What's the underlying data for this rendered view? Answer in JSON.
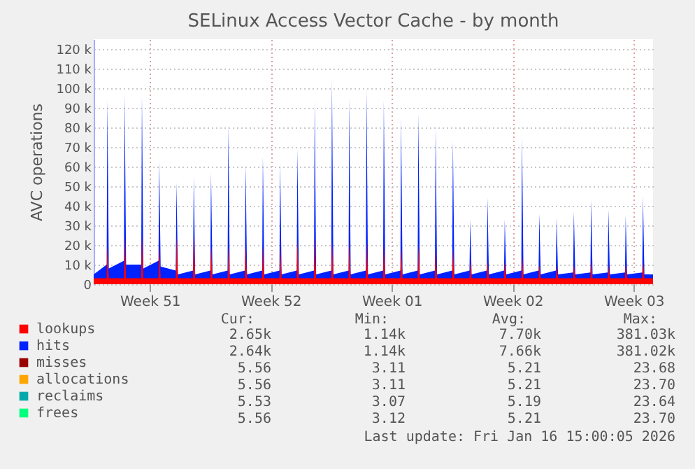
{
  "chart_data": {
    "type": "area",
    "title": "SELinux Access Vector Cache - by month",
    "ylabel": "AVC operations",
    "x": [
      "2025-12-15T06:00",
      "2025-12-16T00:00",
      "2025-12-16T01:00",
      "2025-12-16T03:00",
      "2025-12-17T00:00",
      "2025-12-17T01:00",
      "2025-12-17T03:00",
      "2025-12-18T00:00",
      "2025-12-18T01:00",
      "2025-12-18T03:00",
      "2025-12-19T00:00",
      "2025-12-19T01:00",
      "2025-12-19T03:00",
      "2025-12-20T00:00",
      "2025-12-20T01:00",
      "2025-12-20T03:00",
      "2025-12-21T00:00",
      "2025-12-21T01:00",
      "2025-12-21T03:00",
      "2025-12-22T00:00",
      "2025-12-22T01:00",
      "2025-12-22T03:00",
      "2025-12-23T00:00",
      "2025-12-23T01:00",
      "2025-12-23T03:00",
      "2025-12-24T00:00",
      "2025-12-24T01:00",
      "2025-12-24T03:00",
      "2025-12-25T00:00",
      "2025-12-25T01:00",
      "2025-12-25T03:00",
      "2025-12-26T00:00",
      "2025-12-26T01:00",
      "2025-12-26T03:00",
      "2025-12-27T00:00",
      "2025-12-27T01:00",
      "2025-12-27T03:00",
      "2025-12-28T00:00",
      "2025-12-28T01:00",
      "2025-12-28T03:00",
      "2025-12-29T00:00",
      "2025-12-29T01:00",
      "2025-12-29T03:00",
      "2025-12-30T00:00",
      "2025-12-30T01:00",
      "2025-12-30T03:00",
      "2025-12-31T00:00",
      "2025-12-31T01:00",
      "2025-12-31T03:00",
      "2026-01-01T00:00",
      "2026-01-01T01:00",
      "2026-01-01T03:00",
      "2026-01-02T00:00",
      "2026-01-02T01:00",
      "2026-01-02T03:00",
      "2026-01-03T00:00",
      "2026-01-03T01:00",
      "2026-01-03T03:00",
      "2026-01-04T00:00",
      "2026-01-04T01:00",
      "2026-01-04T03:00",
      "2026-01-05T00:00",
      "2026-01-05T01:00",
      "2026-01-05T03:00",
      "2026-01-06T00:00",
      "2026-01-06T01:00",
      "2026-01-06T03:00",
      "2026-01-07T00:00",
      "2026-01-07T01:00",
      "2026-01-07T03:00",
      "2026-01-08T00:00",
      "2026-01-08T01:00",
      "2026-01-08T03:00",
      "2026-01-09T00:00",
      "2026-01-09T01:00",
      "2026-01-09T03:00",
      "2026-01-10T00:00",
      "2026-01-10T01:00",
      "2026-01-10T03:00",
      "2026-01-11T00:00",
      "2026-01-11T01:00",
      "2026-01-11T03:00",
      "2026-01-12T00:00",
      "2026-01-12T01:00",
      "2026-01-12T03:00",
      "2026-01-13T00:00",
      "2026-01-13T01:00",
      "2026-01-13T03:00",
      "2026-01-14T00:00",
      "2026-01-14T01:00",
      "2026-01-14T03:00",
      "2026-01-15T00:00",
      "2026-01-15T01:00",
      "2026-01-15T03:00",
      "2026-01-16T00:00",
      "2026-01-16T01:00",
      "2026-01-16T03:00",
      "2026-01-16T15:00"
    ],
    "series": [
      {
        "name": "lookups",
        "color": "#ff0000",
        "values": [
          3000,
          3000,
          20000,
          3000,
          3000,
          25000,
          3000,
          3000,
          25000,
          3000,
          3000,
          20000,
          3000,
          3000,
          25000,
          3000,
          3000,
          25000,
          3000,
          3000,
          20000,
          3000,
          3000,
          20000,
          3000,
          3000,
          20000,
          3000,
          3000,
          20000,
          3000,
          3000,
          20000,
          3000,
          3000,
          22000,
          3000,
          3000,
          25000,
          3000,
          3000,
          22000,
          3000,
          3000,
          22000,
          3000,
          3000,
          22000,
          3000,
          3000,
          20000,
          3000,
          3000,
          20000,
          3000,
          3000,
          20000,
          3000,
          3000,
          18000,
          3000,
          3000,
          18000,
          3000,
          3000,
          12000,
          3000,
          3000,
          12000,
          3000,
          3000,
          12000,
          3000,
          3000,
          15000,
          3000,
          3000,
          10000,
          3000,
          3000,
          10000,
          3000,
          3000,
          10000,
          3000,
          3000,
          12000,
          3000,
          3000,
          10000,
          3000,
          3000,
          10000,
          3000,
          3000,
          12000,
          3000,
          3000
        ]
      },
      {
        "name": "hits",
        "color": "#0022ff",
        "values": [
          5000,
          10000,
          94000,
          8000,
          12000,
          97000,
          10000,
          10000,
          96000,
          8000,
          12000,
          63000,
          9000,
          7000,
          52000,
          5000,
          7000,
          55000,
          5000,
          7000,
          57000,
          5000,
          7000,
          81000,
          5000,
          7000,
          61000,
          5000,
          7000,
          65000,
          5000,
          7000,
          62000,
          5000,
          7000,
          69000,
          5000,
          7000,
          94000,
          5000,
          7000,
          104000,
          5000,
          7000,
          95000,
          5000,
          7000,
          99000,
          5000,
          7000,
          94000,
          5000,
          7000,
          85000,
          5000,
          7000,
          87000,
          5000,
          7000,
          80000,
          5000,
          7000,
          73000,
          5000,
          7000,
          33000,
          5000,
          7000,
          44000,
          5000,
          7000,
          33000,
          5000,
          7000,
          75000,
          5000,
          7000,
          36000,
          5000,
          7000,
          34000,
          5000,
          6000,
          37000,
          5000,
          6000,
          43000,
          5000,
          6000,
          38000,
          5000,
          6000,
          35000,
          5000,
          6000,
          45000,
          5000,
          5000
        ]
      },
      {
        "name": "misses",
        "color": "#990000",
        "values": [
          null,
          null,
          null,
          null,
          null,
          null,
          null,
          null,
          null,
          null,
          null,
          null,
          null,
          null,
          null,
          null,
          null,
          null,
          null,
          null,
          null,
          null,
          null,
          null,
          null,
          null,
          null,
          null,
          null,
          null,
          null,
          null,
          null,
          null,
          null,
          null,
          null,
          null,
          null,
          null,
          null,
          null,
          null,
          null,
          null,
          null,
          null,
          null,
          null,
          null,
          null,
          null,
          null,
          null,
          null,
          null,
          null,
          null,
          null,
          null,
          null,
          null,
          null,
          null,
          null,
          null,
          null,
          null,
          null,
          null,
          null,
          null,
          null,
          null,
          null,
          null,
          null,
          null,
          null,
          null,
          null,
          null,
          null,
          null,
          null,
          null,
          null,
          null,
          null,
          null,
          null,
          null,
          null,
          null,
          null,
          null,
          null,
          null
        ]
      },
      {
        "name": "allocations",
        "color": "#ffa500",
        "values": [
          null,
          null,
          null,
          null,
          null,
          null,
          null,
          null,
          null,
          null,
          null,
          null,
          null,
          null,
          null,
          null,
          null,
          null,
          null,
          null,
          null,
          null,
          null,
          null,
          null,
          null,
          null,
          null,
          null,
          null,
          null,
          null,
          null,
          null,
          null,
          null,
          null,
          null,
          null,
          null,
          null,
          null,
          null,
          null,
          null,
          null,
          null,
          null,
          null,
          null,
          null,
          null,
          null,
          null,
          null,
          null,
          null,
          null,
          null,
          null,
          null,
          null,
          null,
          null,
          null,
          null,
          null,
          null,
          null,
          null,
          null,
          null,
          null,
          null,
          null,
          null,
          null,
          null,
          null,
          null,
          null,
          null,
          null,
          null,
          null,
          null,
          null,
          null,
          null,
          null,
          null,
          null,
          null,
          null,
          null,
          null,
          null,
          null
        ]
      },
      {
        "name": "reclaims",
        "color": "#00aaaa",
        "values": [
          null,
          null,
          null,
          null,
          null,
          null,
          null,
          null,
          null,
          null,
          null,
          null,
          null,
          null,
          null,
          null,
          null,
          null,
          null,
          null,
          null,
          null,
          null,
          null,
          null,
          null,
          null,
          null,
          null,
          null,
          null,
          null,
          null,
          null,
          null,
          null,
          null,
          null,
          null,
          null,
          null,
          null,
          null,
          null,
          null,
          null,
          null,
          null,
          null,
          null,
          null,
          null,
          null,
          null,
          null,
          null,
          null,
          null,
          null,
          null,
          null,
          null,
          null,
          null,
          null,
          null,
          null,
          null,
          null,
          null,
          null,
          null,
          null,
          null,
          null,
          null,
          null,
          null,
          null,
          null,
          null,
          null,
          null,
          null,
          null,
          null,
          null,
          null,
          null,
          null,
          null,
          null,
          null,
          null,
          null,
          null,
          null,
          null
        ]
      },
      {
        "name": "frees",
        "color": "#00ff7f",
        "values": [
          null,
          null,
          null,
          null,
          null,
          null,
          null,
          null,
          null,
          null,
          null,
          null,
          null,
          null,
          null,
          null,
          null,
          null,
          null,
          null,
          null,
          null,
          null,
          null,
          null,
          null,
          null,
          null,
          null,
          null,
          null,
          null,
          null,
          null,
          null,
          null,
          null,
          null,
          null,
          null,
          null,
          null,
          null,
          null,
          null,
          null,
          null,
          null,
          null,
          null,
          null,
          null,
          null,
          null,
          null,
          null,
          null,
          null,
          null,
          null,
          null,
          null,
          null,
          null,
          null,
          null,
          null,
          null,
          null,
          null,
          null,
          null,
          null,
          null,
          null,
          null,
          null,
          null,
          null,
          null,
          null,
          null,
          null,
          null,
          null,
          null,
          null,
          null,
          null,
          null,
          null,
          null,
          null,
          null,
          null,
          null,
          null,
          null
        ]
      }
    ],
    "xlim": [
      "2025-12-15T06:00",
      "2026-01-16T15:00"
    ],
    "xticks": [
      {
        "value": "2025-12-18T12:00",
        "label": "Week 51"
      },
      {
        "value": "2025-12-25T12:00",
        "label": "Week 52"
      },
      {
        "value": "2026-01-01T12:00",
        "label": "Week 01"
      },
      {
        "value": "2026-01-08T12:00",
        "label": "Week 02"
      },
      {
        "value": "2026-01-15T12:00",
        "label": "Week 03"
      }
    ],
    "ylim": [
      0,
      125000
    ],
    "yticks": [
      0,
      {
        "value": 10000,
        "label": "10 k"
      },
      {
        "value": 20000,
        "label": "20 k"
      },
      {
        "value": 30000,
        "label": "30 k"
      },
      {
        "value": 40000,
        "label": "40 k"
      },
      {
        "value": 50000,
        "label": "50 k"
      },
      {
        "value": 60000,
        "label": "60 k"
      },
      {
        "value": 70000,
        "label": "70 k"
      },
      {
        "value": 80000,
        "label": "80 k"
      },
      {
        "value": 90000,
        "label": "90 k"
      },
      {
        "value": 100000,
        "label": "100 k"
      },
      {
        "value": 110000,
        "label": "110 k"
      },
      {
        "value": 120000,
        "label": "120 k"
      }
    ],
    "grid": true,
    "legend": "bottom left",
    "annotations": [
      "Cur:",
      "Min:",
      "Avg:",
      "Max:",
      "2.65k",
      "1.14k",
      "7.70k",
      "381.03k",
      "2.64k",
      "1.14k",
      "7.66k",
      "381.02k",
      "5.56",
      "3.11",
      "5.21",
      "23.68",
      "5.56",
      "3.11",
      "5.21",
      "23.70",
      "5.53",
      "3.07",
      "5.19",
      "23.64",
      "5.56",
      "3.12",
      "5.21",
      "23.70",
      "Last update: Fri Jan 16 15:00:05 2026"
    ]
  }
}
